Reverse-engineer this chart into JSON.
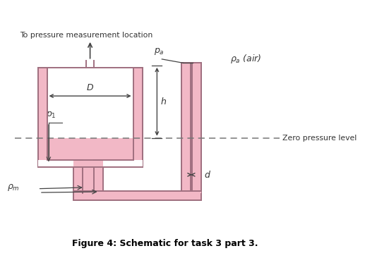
{
  "title": "Figure 4: Schematic for task 3 part 3.",
  "bg_color": "#ffffff",
  "fill_color": "#f2b8c6",
  "stroke_color": "#a07080",
  "dashed_color": "#777777",
  "arrow_color": "#444444",
  "text_color": "#333333",
  "label_top": "To pressure measurement location",
  "label_Pa": "$p_a$",
  "label_Pa_air": "$\\rho_a$ (air)",
  "label_D": "$D$",
  "label_h": "$h$",
  "label_P1": "$p_1$",
  "label_Pm": "$\\rho_m$",
  "label_d": "$d$",
  "label_zero": "Zero pressure level"
}
